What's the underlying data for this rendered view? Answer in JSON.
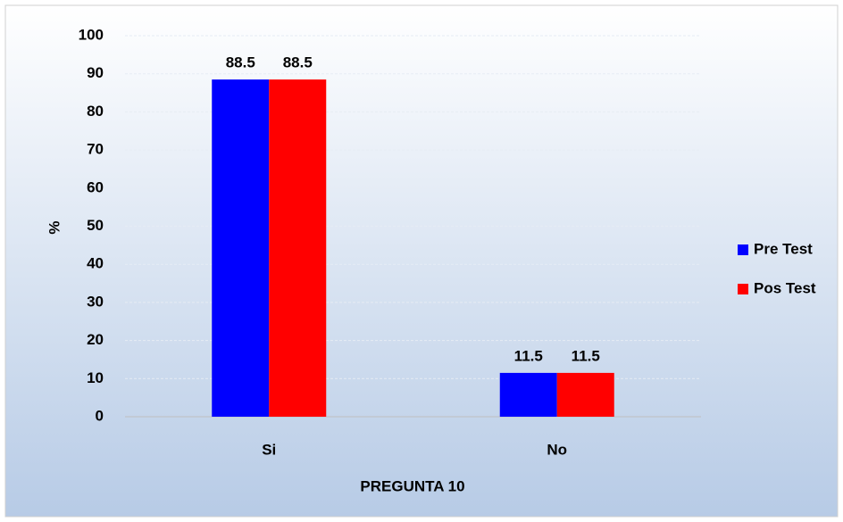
{
  "chart_data": {
    "type": "bar",
    "xlabel": "PREGUNTA 10",
    "ylabel": "%",
    "categories": [
      "Si",
      "No"
    ],
    "series": [
      {
        "name": "Pre Test",
        "color": "#0000ff",
        "values": [
          88.5,
          11.5
        ]
      },
      {
        "name": "Pos Test",
        "color": "#ff0000",
        "values": [
          88.5,
          11.5
        ]
      }
    ],
    "ylim": [
      0,
      100
    ],
    "yticks": [
      0,
      10,
      20,
      30,
      40,
      50,
      60,
      70,
      80,
      90,
      100
    ],
    "grid": true,
    "legend": "right"
  }
}
